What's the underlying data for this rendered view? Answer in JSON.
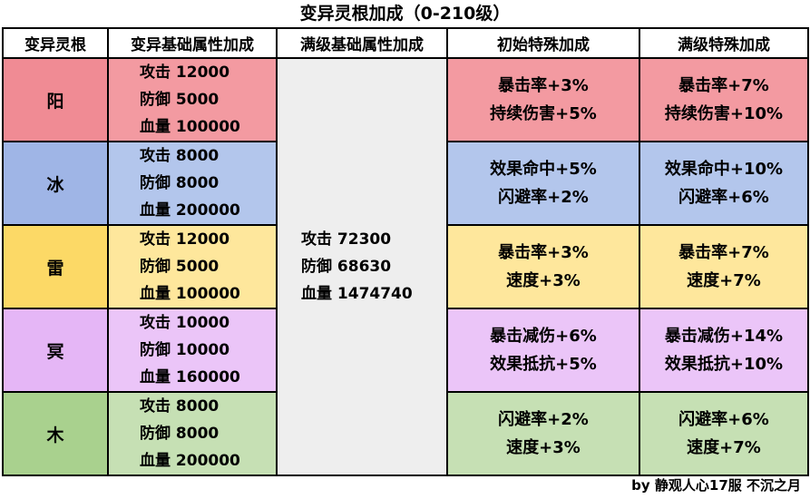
{
  "title": "变异灵根加成（0-210级）",
  "headers": [
    "变异灵根",
    "变异基础属性加成",
    "满级基础属性加成",
    "初始特殊加成",
    "满级特殊加成"
  ],
  "full_level_base": [
    "攻击 72300",
    "防御 68630",
    "血量 1474740"
  ],
  "rows": [
    {
      "name": "阳",
      "base": [
        "攻击 12000",
        "防御 5000",
        "血量 100000"
      ],
      "initial": [
        "暴击率+3%",
        "持续伤害+5%"
      ],
      "max": [
        "暴击率+7%",
        "持续伤害+10%"
      ]
    },
    {
      "name": "冰",
      "base": [
        "攻击 8000",
        "防御 8000",
        "血量 200000"
      ],
      "initial": [
        "效果命中+5%",
        "闪避率+2%"
      ],
      "max": [
        "效果命中+10%",
        "闪避率+6%"
      ]
    },
    {
      "name": "雷",
      "base": [
        "攻击 12000",
        "防御 5000",
        "血量 100000"
      ],
      "initial": [
        "暴击率+3%",
        "速度+3%"
      ],
      "max": [
        "暴击率+7%",
        "速度+7%"
      ]
    },
    {
      "name": "冥",
      "base": [
        "攻击 10000",
        "防御 10000",
        "血量 160000"
      ],
      "initial": [
        "暴击减伤+6%",
        "效果抵抗+5%"
      ],
      "max": [
        "暴击减伤+14%",
        "效果抵抗+10%"
      ]
    },
    {
      "name": "木",
      "base": [
        "攻击 8000",
        "防御 8000",
        "血量 200000"
      ],
      "initial": [
        "闪避率+2%",
        "速度+3%"
      ],
      "max": [
        "闪避率+6%",
        "速度+7%"
      ]
    }
  ],
  "footer": "by 静观人心17服 不沉之月",
  "colors": {
    "yang": "#f39aa1",
    "bing": "#b3c6ec",
    "lei": "#fee79c",
    "ming": "#ebc5f8",
    "mu": "#c6e0b4",
    "full_level": "#eeeeee"
  }
}
